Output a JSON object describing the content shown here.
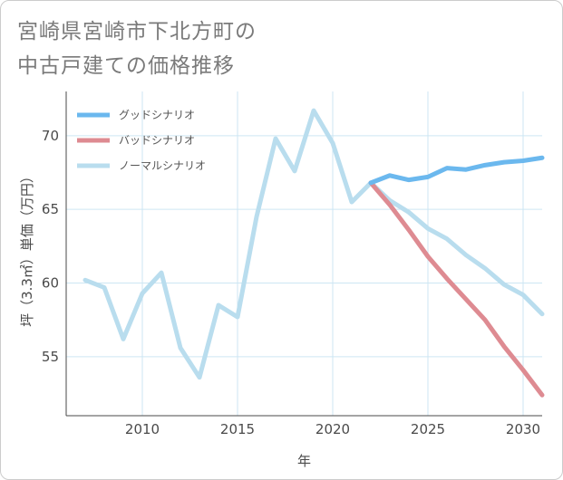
{
  "title_line1": "宮崎県宮崎市下北方町の",
  "title_line2": "中古戸建ての価格推移",
  "colors": {
    "good": "#6bb8ee",
    "bad": "#de8b92",
    "normal": "#b9ddee",
    "grid": "#cde6f3",
    "axis": "#4a4a4a"
  },
  "chart_data": {
    "type": "line",
    "xlabel": "年",
    "ylabel": "坪（3.3㎡）単価（万円）",
    "xlim": [
      2006,
      2031
    ],
    "ylim": [
      51,
      73
    ],
    "xticks": [
      2010,
      2015,
      2020,
      2025,
      2030
    ],
    "yticks": [
      55,
      60,
      65,
      70
    ],
    "grid": true,
    "legend_position": "top-left",
    "series": [
      {
        "name": "グッドシナリオ",
        "color": "#6bb8ee",
        "x": [
          2022,
          2023,
          2024,
          2025,
          2026,
          2027,
          2028,
          2029,
          2030,
          2031
        ],
        "y": [
          66.8,
          67.3,
          67.0,
          67.2,
          67.8,
          67.7,
          68.0,
          68.2,
          68.3,
          68.5
        ]
      },
      {
        "name": "バッドシナリオ",
        "color": "#de8b92",
        "x": [
          2022,
          2023,
          2024,
          2025,
          2026,
          2027,
          2028,
          2029,
          2030,
          2031
        ],
        "y": [
          66.8,
          65.3,
          63.6,
          61.8,
          60.3,
          58.9,
          57.5,
          55.7,
          54.1,
          52.4
        ]
      },
      {
        "name": "ノーマルシナリオ",
        "color": "#b9ddee",
        "x": [
          2007,
          2008,
          2009,
          2010,
          2011,
          2012,
          2013,
          2014,
          2015,
          2016,
          2017,
          2018,
          2019,
          2020,
          2021,
          2022,
          2023,
          2024,
          2025,
          2026,
          2027,
          2028,
          2029,
          2030,
          2031
        ],
        "y": [
          60.2,
          59.7,
          56.2,
          59.3,
          60.7,
          55.6,
          53.6,
          58.5,
          57.7,
          64.5,
          69.8,
          67.6,
          71.7,
          69.5,
          65.5,
          66.8,
          65.6,
          64.8,
          63.7,
          63.0,
          61.9,
          61.0,
          59.9,
          59.2,
          57.9
        ]
      }
    ]
  }
}
